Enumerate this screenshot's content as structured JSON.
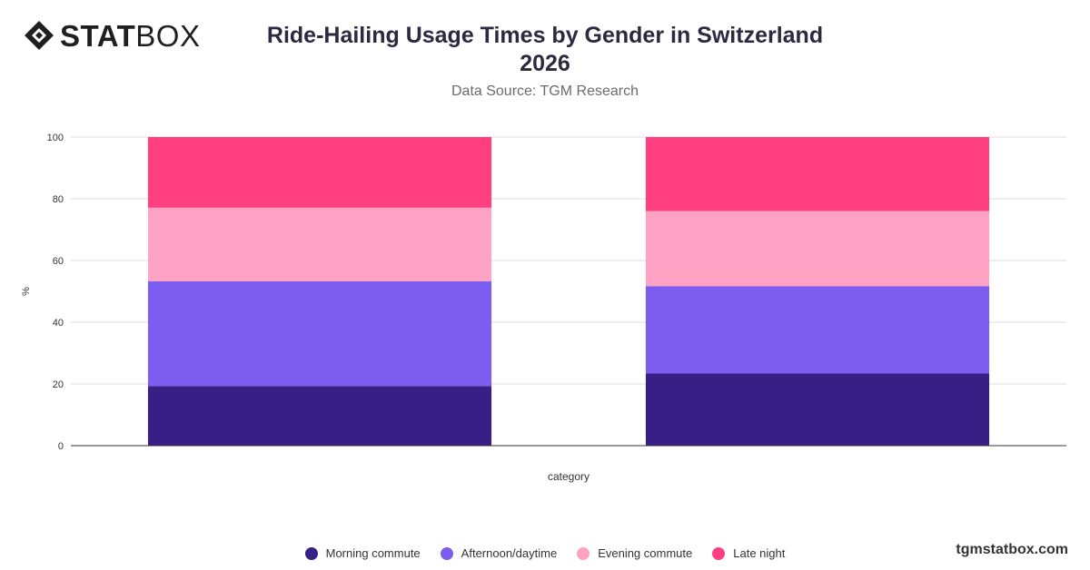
{
  "header": {
    "logo_bold": "STAT",
    "logo_light": "BOX",
    "title_line1": "Ride-Hailing Usage Times by Gender in Switzerland",
    "title_line2": "2026",
    "subtitle": "Data Source: TGM Research"
  },
  "footer": {
    "brand": "tgmstatbox.com"
  },
  "chart_data": {
    "type": "bar",
    "stacked": true,
    "categories": [
      "",
      ""
    ],
    "xlabel": "category",
    "ylabel": "%",
    "ylim": [
      0,
      100
    ],
    "yticks": [
      0,
      20,
      40,
      60,
      80,
      100
    ],
    "grid": true,
    "legend_position": "bottom",
    "series": [
      {
        "name": "Morning commute",
        "color": "#371f85",
        "values": [
          19.3,
          23.4
        ]
      },
      {
        "name": "Afternoon/daytime",
        "color": "#7d5cf0",
        "values": [
          34.0,
          28.3
        ]
      },
      {
        "name": "Evening commute",
        "color": "#ffa2c3",
        "values": [
          23.8,
          24.3
        ]
      },
      {
        "name": "Late night",
        "color": "#ff3f80",
        "values": [
          22.9,
          24.0
        ]
      }
    ]
  }
}
